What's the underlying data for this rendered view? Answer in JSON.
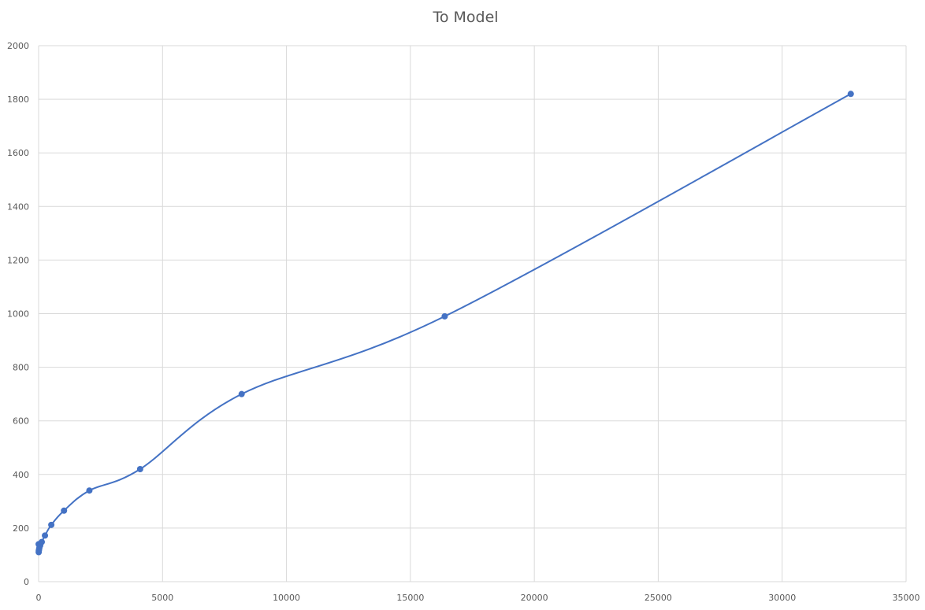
{
  "chart_data": {
    "type": "scatter",
    "title": "To Model",
    "xlabel": "",
    "ylabel": "",
    "xlim": [
      0,
      35000
    ],
    "ylim": [
      0,
      2000
    ],
    "x_ticks": [
      "0",
      "5000",
      "10000",
      "15000",
      "20000",
      "25000",
      "30000",
      "35000"
    ],
    "y_ticks": [
      "0",
      "200",
      "400",
      "600",
      "800",
      "1000",
      "1200",
      "1400",
      "1600",
      "1800",
      "2000"
    ],
    "grid": true,
    "legend": "none",
    "line_style": "smoothed",
    "series": [
      {
        "color": "#4472c4",
        "points": [
          {
            "x": 2,
            "y": 140
          },
          {
            "x": 4,
            "y": 110
          },
          {
            "x": 8,
            "y": 115
          },
          {
            "x": 16,
            "y": 120
          },
          {
            "x": 32,
            "y": 127
          },
          {
            "x": 64,
            "y": 135
          },
          {
            "x": 128,
            "y": 148
          },
          {
            "x": 256,
            "y": 172
          },
          {
            "x": 512,
            "y": 212
          },
          {
            "x": 1024,
            "y": 265
          },
          {
            "x": 2048,
            "y": 340
          },
          {
            "x": 4096,
            "y": 420
          },
          {
            "x": 8192,
            "y": 700
          },
          {
            "x": 16384,
            "y": 990
          },
          {
            "x": 32768,
            "y": 1820
          }
        ]
      }
    ]
  }
}
